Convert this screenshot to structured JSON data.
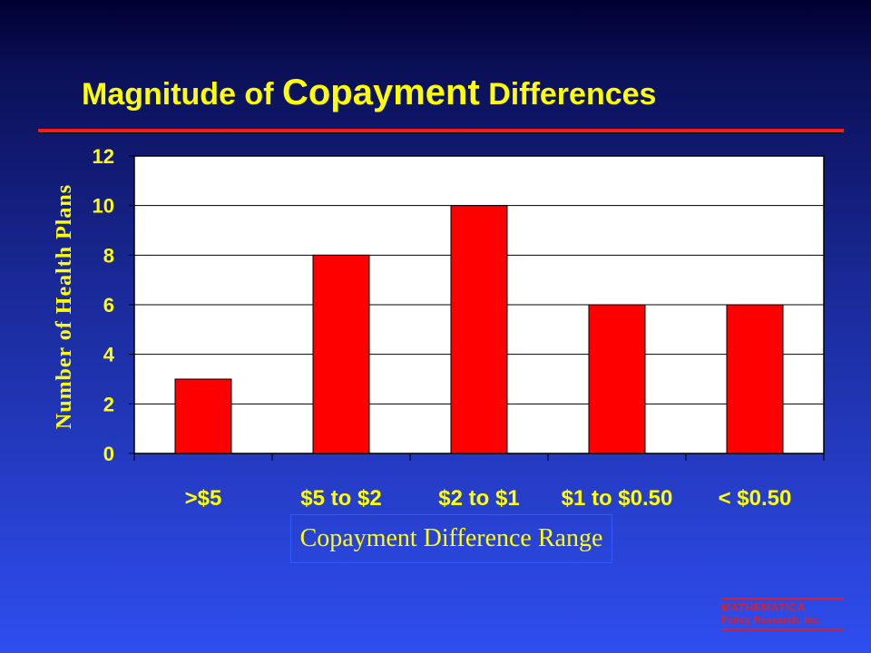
{
  "title": {
    "part1": "Magnitude of",
    "part2": "Copayment",
    "part3": "Differences"
  },
  "chart_data": {
    "type": "bar",
    "categories": [
      ">$5",
      "$5 to $2",
      "$2 to $1",
      "$1 to $0.50",
      "< $0.50"
    ],
    "values": [
      3,
      8,
      10,
      6,
      6
    ],
    "xlabel": "Copayment Difference Range",
    "ylabel": "Number of Health Plans",
    "ylim": [
      0,
      12
    ],
    "yticks": [
      0,
      2,
      4,
      6,
      8,
      10,
      12
    ],
    "grid": true,
    "bar_color": "#ff0000",
    "plot_background": "#ffffff",
    "gridline_color": "#000000",
    "text_color": "#ffff00"
  },
  "logo": {
    "line1": "MATHEMATICA",
    "line2": "Policy Research, Inc."
  },
  "colors": {
    "title": "#ffff00",
    "rule": "#ff1a1a",
    "logo": "#d9202a"
  }
}
